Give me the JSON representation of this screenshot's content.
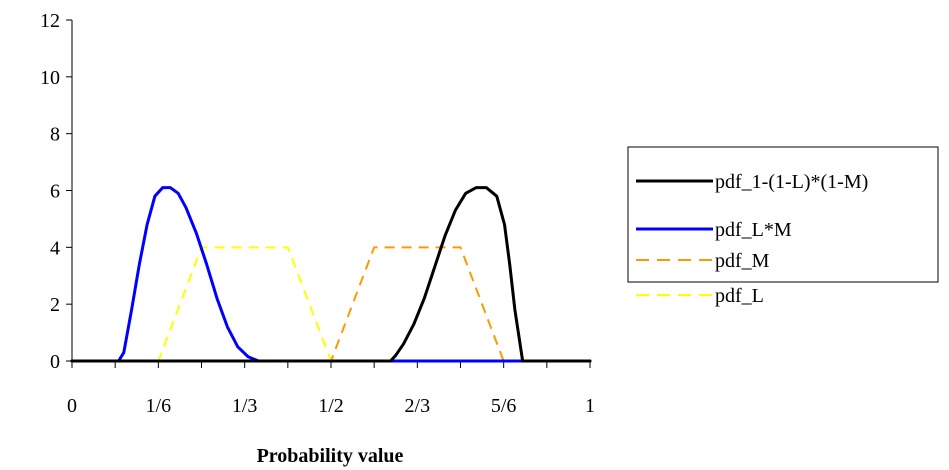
{
  "chart_data": {
    "type": "line",
    "title": "",
    "xlabel": "Probability value",
    "ylabel": "",
    "xlim": [
      0,
      1
    ],
    "ylim": [
      0,
      12
    ],
    "y_ticks": [
      0,
      2,
      4,
      6,
      8,
      10,
      12
    ],
    "x_ticks": [
      0,
      0.16667,
      0.33333,
      0.5,
      0.66667,
      0.83333,
      1
    ],
    "x_tick_labels": [
      "0",
      "1/6",
      "1/3",
      "1/2",
      "2/3",
      "5/6",
      "1"
    ],
    "grid": false,
    "legend_position": "right",
    "series": [
      {
        "name": "pdf_1-(1-L)*(1-M)",
        "color": "#000000",
        "style": "solid",
        "x": [
          0,
          0.615,
          0.625,
          0.64,
          0.66,
          0.68,
          0.7,
          0.72,
          0.74,
          0.76,
          0.78,
          0.8,
          0.82,
          0.835,
          0.845,
          0.855,
          0.87,
          1
        ],
        "y": [
          0,
          0,
          0.2,
          0.6,
          1.3,
          2.2,
          3.3,
          4.4,
          5.3,
          5.9,
          6.1,
          6.1,
          5.8,
          4.8,
          3.4,
          1.8,
          0,
          0
        ]
      },
      {
        "name": "pdf_L*M",
        "color": "#0000ff",
        "style": "solid",
        "x": [
          0,
          0.09,
          0.1,
          0.115,
          0.13,
          0.145,
          0.16,
          0.175,
          0.19,
          0.205,
          0.22,
          0.24,
          0.26,
          0.28,
          0.3,
          0.32,
          0.34,
          0.36,
          0.38,
          1
        ],
        "y": [
          0,
          0,
          0.3,
          1.8,
          3.4,
          4.8,
          5.8,
          6.1,
          6.1,
          5.9,
          5.4,
          4.5,
          3.4,
          2.2,
          1.2,
          0.5,
          0.15,
          0,
          0,
          0
        ]
      },
      {
        "name": "pdf_M",
        "color": "#ff9900",
        "style": "dashed",
        "x": [
          0,
          0.5,
          0.5833,
          0.75,
          0.8333,
          1
        ],
        "y": [
          0,
          0,
          4,
          4,
          0,
          0
        ]
      },
      {
        "name": "pdf_L",
        "color": "#ffff00",
        "style": "dashed",
        "x": [
          0,
          0.1667,
          0.25,
          0.4167,
          0.5,
          1
        ],
        "y": [
          0,
          0,
          4,
          4,
          0,
          0
        ]
      }
    ]
  }
}
